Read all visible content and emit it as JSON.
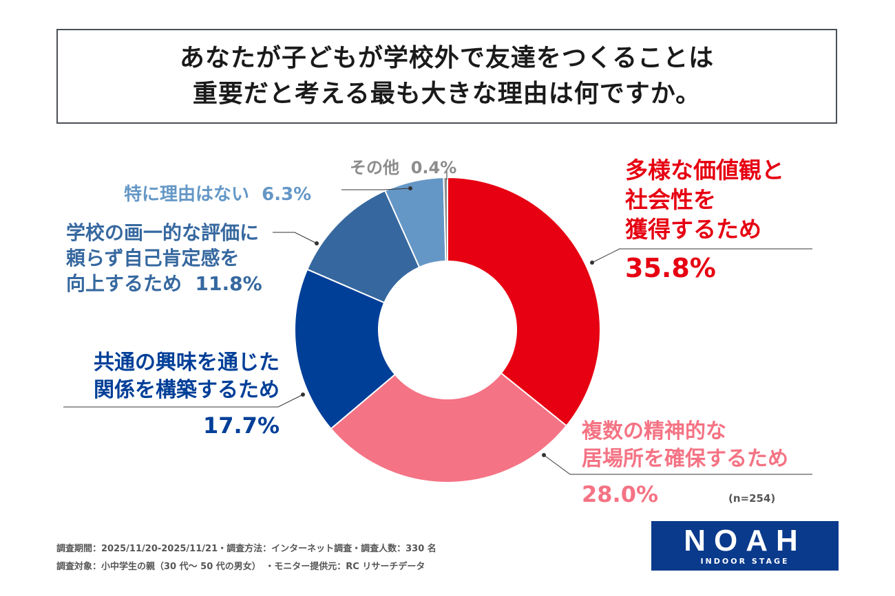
{
  "title": {
    "line1": "あなたが子どもが学校外で友達をつくることは",
    "line2": "重要だと考える最も大きな理由は何ですか。"
  },
  "colors": {
    "diverse": "#e60012",
    "places": "#f47384",
    "common": "#003f98",
    "self": "#36689f",
    "none": "#6497c6",
    "other": "#8c8c8c"
  },
  "chart_data": {
    "type": "pie",
    "donut": true,
    "categories": [
      "多様な価値観と社会性を獲得するため",
      "複数の精神的な居場所を確保するため",
      "共通の興味を通じた関係を構築するため",
      "学校の画一的な評価に頼らず自己肯定感を向上するため",
      "特に理由はない",
      "その他"
    ],
    "values": [
      35.8,
      28.0,
      17.7,
      11.8,
      6.3,
      0.4
    ],
    "n": "(n=254)"
  },
  "labels": {
    "diverse": {
      "lines": [
        "多様な価値観と",
        "社会性を",
        "獲得するため"
      ],
      "value": "35.8%"
    },
    "places": {
      "lines": [
        "複数の精神的な",
        "居場所を確保するため"
      ],
      "value": "28.0%"
    },
    "common": {
      "lines": [
        "共通の興味を通じた",
        "関係を構築するため"
      ],
      "value": "17.7%"
    },
    "self": {
      "lines": [
        "学校の画一的な評価に",
        "頼らず自己肯定感を",
        "向上するため"
      ],
      "value": "11.8%"
    },
    "none": {
      "text": "特に理由はない",
      "value": "6.3%"
    },
    "other": {
      "text": "その他",
      "value": "0.4%"
    }
  },
  "footer": {
    "line1": "調査期間：2025/11/20-2025/11/21・調査方法：インターネット調査・調査人数：330 名",
    "line2": "調査対象：小中学生の親（30 代～ 50 代の男女）　・モニター提供元：RC リサーチデータ"
  },
  "logo": {
    "word": "NOAH",
    "sub": "INDOOR STAGE"
  }
}
